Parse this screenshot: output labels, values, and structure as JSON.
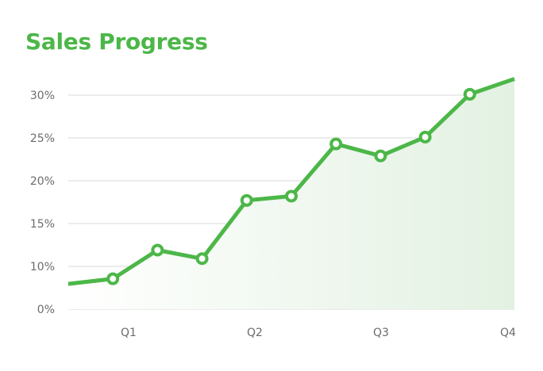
{
  "chart_data": {
    "type": "area",
    "title": "Sales Progress",
    "xlabel": "",
    "ylabel": "",
    "categories": [
      "Q1",
      "Q2",
      "Q3",
      "Q4"
    ],
    "y_ticks": [
      "0%",
      "10%",
      "15%",
      "20%",
      "25%",
      "30%"
    ],
    "ylim": [
      0,
      32
    ],
    "grid": true,
    "legend": "none",
    "series": [
      {
        "name": "Sales Progress",
        "color": "#4cb748",
        "points": [
          {
            "x": 0.0,
            "y": 5.9,
            "marker": false
          },
          {
            "x": 0.5,
            "y": 7.1,
            "marker": true
          },
          {
            "x": 1.0,
            "y": 11.9,
            "marker": true
          },
          {
            "x": 1.5,
            "y": 10.9,
            "marker": true
          },
          {
            "x": 2.0,
            "y": 17.7,
            "marker": true
          },
          {
            "x": 2.5,
            "y": 18.2,
            "marker": true
          },
          {
            "x": 3.0,
            "y": 24.3,
            "marker": true
          },
          {
            "x": 3.5,
            "y": 22.9,
            "marker": true
          },
          {
            "x": 4.0,
            "y": 25.1,
            "marker": true
          },
          {
            "x": 4.5,
            "y": 30.1,
            "marker": true
          },
          {
            "x": 5.0,
            "y": 31.9,
            "marker": false
          }
        ]
      }
    ]
  },
  "colors": {
    "accent": "#4cb748",
    "grid": "#d9d9d9",
    "tick_text": "#6b6b6b",
    "fill_start": "#ffffff",
    "fill_end": "#e3f1e2"
  }
}
